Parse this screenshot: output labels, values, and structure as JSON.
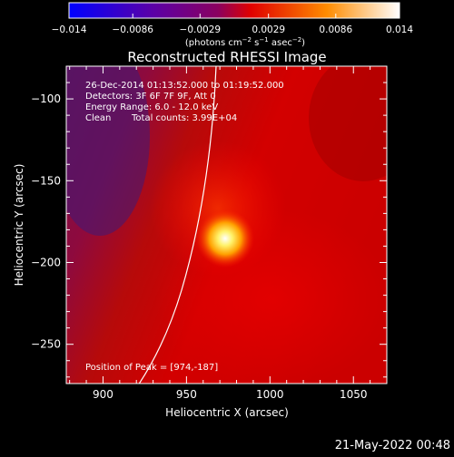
{
  "chart_data": {
    "type": "heatmap",
    "title": "Reconstructed RHESSI Image",
    "xlabel": "Heliocentric X (arcsec)",
    "ylabel": "Heliocentric Y (arcsec)",
    "xlim": [
      878,
      1070
    ],
    "ylim": [
      -274,
      -80
    ],
    "x_ticks": [
      900,
      950,
      1000,
      1050
    ],
    "y_ticks": [
      -250,
      -200,
      -150,
      -100
    ],
    "x_tick_labels": [
      "900",
      "950",
      "1000",
      "1050"
    ],
    "y_tick_labels": [
      "−250",
      "−200",
      "−150",
      "−100"
    ],
    "colorbar": {
      "range": [
        -0.014,
        0.014
      ],
      "ticks": [
        -0.014,
        -0.0086,
        -0.0029,
        0.0029,
        0.0086,
        0.014
      ],
      "tick_labels": [
        "−0.014",
        "−0.0086",
        "−0.0029",
        "0.0029",
        "0.0086",
        "0.014"
      ],
      "colors": [
        "#0000ff",
        "#4b0082",
        "#6a0080",
        "#ff0000",
        "#ffa000",
        "#ffffff"
      ]
    },
    "info": {
      "time": "26-Dec-2014 01:13:52.000 to 01:19:52.000",
      "detectors": "Detectors: 3F 6F 7F 9F, Att 0",
      "energy": "Energy Range: 6.0 - 12.0 keV",
      "method": "Clean",
      "counts": "Total counts: 3.99E+04"
    },
    "peak_label": "Position of Peak = [974,-187]",
    "peak": [
      974,
      -187
    ],
    "footer_date": "21-May-2022 00:48"
  }
}
